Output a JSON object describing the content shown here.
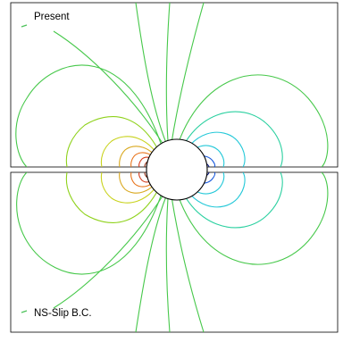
{
  "panels": [
    {
      "legend": "Present",
      "legend_color": "#4cc25a"
    },
    {
      "legend": "NS-Slip B.C.",
      "legend_color": "#4cc25a"
    }
  ],
  "contour_colors": {
    "dark_red": "#8b2c12",
    "red": "#d43a1a",
    "orange": "#e8751c",
    "gold": "#d9a81e",
    "yellow": "#c8d21c",
    "lime": "#8fd21c",
    "green": "#46c84a",
    "teal": "#2bd0a0",
    "cyan": "#24c8d8",
    "blue": "#1a5adc",
    "navy": "#0a1a80"
  }
}
